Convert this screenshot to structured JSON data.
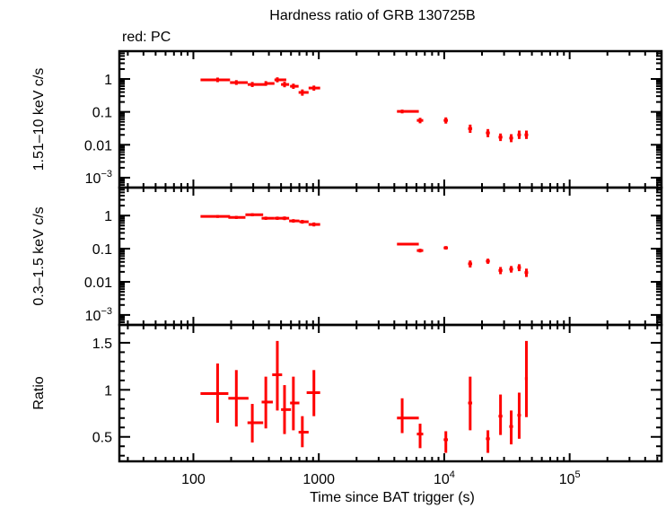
{
  "chart_data": {
    "type": "scatter",
    "title": "Hardness ratio of GRB 130725B",
    "legend_note": "red: PC",
    "xlabel": "Time since BAT trigger (s)",
    "xscale": "log",
    "xlim": [
      25.7,
      540000
    ],
    "xticks": [
      {
        "value": 100,
        "label": "100"
      },
      {
        "value": 1000,
        "label": "1000"
      },
      {
        "value": 10000,
        "label": "10",
        "sup": "4"
      },
      {
        "value": 100000,
        "label": "10",
        "sup": "5"
      }
    ],
    "color": "#ff0000",
    "panels": [
      {
        "name": "hard-band",
        "ylabel": "1.51–10 keV c/s",
        "yscale": "log",
        "ylim": [
          0.0005,
          7.0
        ],
        "yticks": [
          {
            "value": 1,
            "label": "1"
          },
          {
            "value": 0.1,
            "label": "0.1"
          },
          {
            "value": 0.01,
            "label": "0.01"
          },
          {
            "value": 0.001,
            "label": "10",
            "sup": "−3"
          }
        ],
        "points": [
          {
            "x": 156,
            "xlo": 114,
            "xhi": 196,
            "y": 0.94,
            "ylo": 0.8,
            "yhi": 1.1
          },
          {
            "x": 220,
            "xlo": 196,
            "xhi": 271,
            "y": 0.78,
            "ylo": 0.66,
            "yhi": 0.92
          },
          {
            "x": 295,
            "xlo": 271,
            "xhi": 383,
            "y": 0.68,
            "ylo": 0.57,
            "yhi": 0.81
          },
          {
            "x": 378,
            "xlo": 383,
            "xhi": 443,
            "y": 0.73,
            "ylo": 0.62,
            "yhi": 0.86
          },
          {
            "x": 467,
            "xlo": 443,
            "xhi": 550,
            "y": 0.94,
            "ylo": 0.79,
            "yhi": 1.12
          },
          {
            "x": 533,
            "xlo": 500,
            "xhi": 580,
            "y": 0.68,
            "ylo": 0.56,
            "yhi": 0.82
          },
          {
            "x": 627,
            "xlo": 590,
            "xhi": 690,
            "y": 0.6,
            "ylo": 0.5,
            "yhi": 0.72
          },
          {
            "x": 739,
            "xlo": 690,
            "xhi": 829,
            "y": 0.39,
            "ylo": 0.31,
            "yhi": 0.48
          },
          {
            "x": 914,
            "xlo": 829,
            "xhi": 1025,
            "y": 0.53,
            "ylo": 0.44,
            "yhi": 0.63
          },
          {
            "x": 4620,
            "xlo": 4200,
            "xhi": 6270,
            "y": 0.103,
            "ylo": 0.09,
            "yhi": 0.117
          },
          {
            "x": 6420,
            "xlo": 6050,
            "xhi": 6800,
            "y": 0.055,
            "ylo": 0.045,
            "yhi": 0.066
          },
          {
            "x": 10300,
            "xlo": 9900,
            "xhi": 10700,
            "y": 0.055,
            "ylo": 0.044,
            "yhi": 0.068
          },
          {
            "x": 16100,
            "xlo": 15500,
            "xhi": 16700,
            "y": 0.031,
            "ylo": 0.023,
            "yhi": 0.041
          },
          {
            "x": 22300,
            "xlo": 21500,
            "xhi": 23100,
            "y": 0.023,
            "ylo": 0.017,
            "yhi": 0.03
          },
          {
            "x": 28100,
            "xlo": 27100,
            "xhi": 29100,
            "y": 0.017,
            "ylo": 0.013,
            "yhi": 0.022
          },
          {
            "x": 34200,
            "xlo": 33000,
            "xhi": 35400,
            "y": 0.016,
            "ylo": 0.012,
            "yhi": 0.021
          },
          {
            "x": 39600,
            "xlo": 38300,
            "xhi": 40900,
            "y": 0.02,
            "ylo": 0.015,
            "yhi": 0.027
          },
          {
            "x": 45200,
            "xlo": 43700,
            "xhi": 46700,
            "y": 0.02,
            "ylo": 0.015,
            "yhi": 0.027
          }
        ]
      },
      {
        "name": "soft-band",
        "ylabel": "0.3–1.5 keV c/s",
        "yscale": "log",
        "ylim": [
          0.0005,
          7.0
        ],
        "yticks": [
          {
            "value": 1,
            "label": "1"
          },
          {
            "value": 0.1,
            "label": "0.1"
          },
          {
            "value": 0.01,
            "label": "0.01"
          },
          {
            "value": 0.001,
            "label": "10",
            "sup": "−3"
          }
        ],
        "points": [
          {
            "x": 156,
            "xlo": 114,
            "xhi": 196,
            "y": 0.94,
            "ylo": 0.85,
            "yhi": 1.04
          },
          {
            "x": 220,
            "xlo": 190,
            "xhi": 260,
            "y": 0.88,
            "ylo": 0.79,
            "yhi": 0.98
          },
          {
            "x": 295,
            "xlo": 260,
            "xhi": 360,
            "y": 1.06,
            "ylo": 0.95,
            "yhi": 1.18
          },
          {
            "x": 378,
            "xlo": 350,
            "xhi": 443,
            "y": 0.83,
            "ylo": 0.74,
            "yhi": 0.93
          },
          {
            "x": 467,
            "xlo": 443,
            "xhi": 550,
            "y": 0.83,
            "ylo": 0.74,
            "yhi": 0.93
          },
          {
            "x": 533,
            "xlo": 510,
            "xhi": 580,
            "y": 0.83,
            "ylo": 0.73,
            "yhi": 0.94
          },
          {
            "x": 627,
            "xlo": 580,
            "xhi": 700,
            "y": 0.69,
            "ylo": 0.61,
            "yhi": 0.78
          },
          {
            "x": 739,
            "xlo": 700,
            "xhi": 829,
            "y": 0.65,
            "ylo": 0.57,
            "yhi": 0.74
          },
          {
            "x": 914,
            "xlo": 829,
            "xhi": 1025,
            "y": 0.54,
            "ylo": 0.47,
            "yhi": 0.62
          },
          {
            "x": 4620,
            "xlo": 4200,
            "xhi": 6270,
            "y": 0.137,
            "ylo": 0.125,
            "yhi": 0.15
          },
          {
            "x": 6420,
            "xlo": 6050,
            "xhi": 6800,
            "y": 0.088,
            "ylo": 0.077,
            "yhi": 0.1
          },
          {
            "x": 10300,
            "xlo": 9900,
            "xhi": 10700,
            "y": 0.106,
            "ylo": 0.094,
            "yhi": 0.12
          },
          {
            "x": 16100,
            "xlo": 15500,
            "xhi": 16700,
            "y": 0.035,
            "ylo": 0.027,
            "yhi": 0.044
          },
          {
            "x": 22300,
            "xlo": 21500,
            "xhi": 23100,
            "y": 0.042,
            "ylo": 0.035,
            "yhi": 0.05
          },
          {
            "x": 28100,
            "xlo": 27100,
            "xhi": 29100,
            "y": 0.022,
            "ylo": 0.017,
            "yhi": 0.028
          },
          {
            "x": 34200,
            "xlo": 33000,
            "xhi": 35400,
            "y": 0.024,
            "ylo": 0.019,
            "yhi": 0.03
          },
          {
            "x": 39600,
            "xlo": 38300,
            "xhi": 40900,
            "y": 0.027,
            "ylo": 0.021,
            "yhi": 0.034
          },
          {
            "x": 45200,
            "xlo": 43700,
            "xhi": 46700,
            "y": 0.019,
            "ylo": 0.014,
            "yhi": 0.025
          }
        ]
      },
      {
        "name": "ratio",
        "ylabel": "Ratio",
        "yscale": "linear",
        "ylim": [
          0.24,
          1.69
        ],
        "yticks": [
          {
            "value": 1.5,
            "label": "1.5"
          },
          {
            "value": 1,
            "label": "1"
          },
          {
            "value": 0.5,
            "label": "0.5"
          }
        ],
        "yminor_step": 0.1,
        "points": [
          {
            "x": 156,
            "xlo": 114,
            "xhi": 190,
            "y": 0.96,
            "ylo": 0.65,
            "yhi": 1.28
          },
          {
            "x": 220,
            "xlo": 190,
            "xhi": 275,
            "y": 0.91,
            "ylo": 0.61,
            "yhi": 1.21
          },
          {
            "x": 295,
            "xlo": 270,
            "xhi": 360,
            "y": 0.65,
            "ylo": 0.44,
            "yhi": 0.85
          },
          {
            "x": 378,
            "xlo": 350,
            "xhi": 430,
            "y": 0.87,
            "ylo": 0.59,
            "yhi": 1.14
          },
          {
            "x": 467,
            "xlo": 425,
            "xhi": 510,
            "y": 1.16,
            "ylo": 0.78,
            "yhi": 1.52
          },
          {
            "x": 533,
            "xlo": 500,
            "xhi": 600,
            "y": 0.79,
            "ylo": 0.53,
            "yhi": 1.05
          },
          {
            "x": 627,
            "xlo": 590,
            "xhi": 700,
            "y": 0.86,
            "ylo": 0.57,
            "yhi": 1.14
          },
          {
            "x": 739,
            "xlo": 690,
            "xhi": 829,
            "y": 0.55,
            "ylo": 0.39,
            "yhi": 0.72
          },
          {
            "x": 914,
            "xlo": 800,
            "xhi": 1025,
            "y": 0.97,
            "ylo": 0.72,
            "yhi": 1.21
          },
          {
            "x": 4620,
            "xlo": 4200,
            "xhi": 6270,
            "y": 0.7,
            "ylo": 0.54,
            "yhi": 0.91
          },
          {
            "x": 6420,
            "xlo": 6050,
            "xhi": 6800,
            "y": 0.53,
            "ylo": 0.38,
            "yhi": 0.64
          },
          {
            "x": 10300,
            "xlo": 9900,
            "xhi": 10700,
            "y": 0.47,
            "ylo": 0.33,
            "yhi": 0.56
          },
          {
            "x": 16100,
            "xlo": 15500,
            "xhi": 16700,
            "y": 0.86,
            "ylo": 0.57,
            "yhi": 1.14
          },
          {
            "x": 22300,
            "xlo": 21500,
            "xhi": 23100,
            "y": 0.48,
            "ylo": 0.33,
            "yhi": 0.57
          },
          {
            "x": 28100,
            "xlo": 27100,
            "xhi": 29100,
            "y": 0.72,
            "ylo": 0.52,
            "yhi": 0.95
          },
          {
            "x": 34200,
            "xlo": 33000,
            "xhi": 35400,
            "y": 0.61,
            "ylo": 0.42,
            "yhi": 0.78
          },
          {
            "x": 39600,
            "xlo": 38300,
            "xhi": 40900,
            "y": 0.73,
            "ylo": 0.48,
            "yhi": 0.97
          },
          {
            "x": 45200,
            "xlo": 44000,
            "xhi": 46400,
            "y": 1.12,
            "ylo": 0.71,
            "yhi": 1.52
          }
        ]
      }
    ]
  }
}
